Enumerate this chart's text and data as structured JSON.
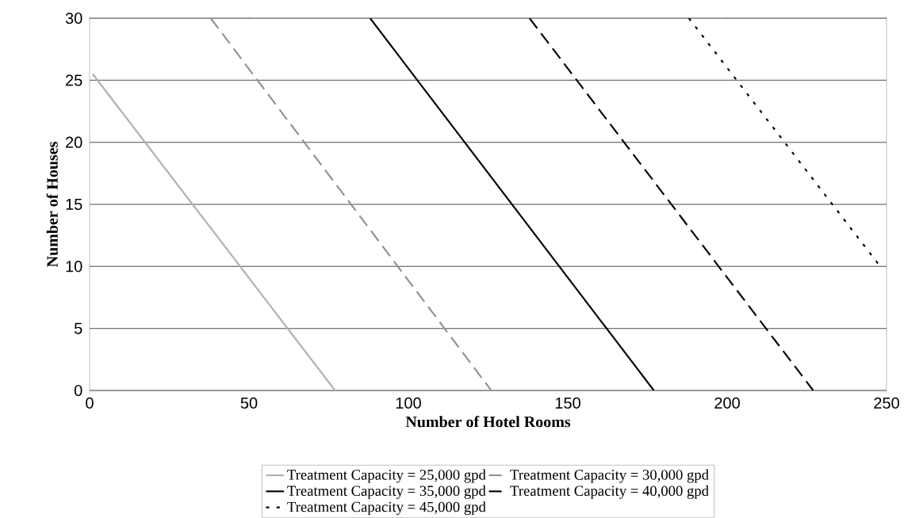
{
  "chart_data": {
    "type": "line",
    "xlabel": "Number of Hotel Rooms",
    "ylabel": "Number of Houses",
    "xlim": [
      0,
      250
    ],
    "xticks": [
      0,
      50,
      100,
      150,
      200,
      250
    ],
    "ylim": [
      0,
      30
    ],
    "yticks": [
      0,
      5,
      10,
      15,
      20,
      25,
      30
    ],
    "grid": "y",
    "legend": "bottom",
    "series": [
      {
        "name": "Treatment Capacity = 25,000 gpd",
        "color": "#b0b0b0",
        "line_style": "solid",
        "x": [
          1,
          77
        ],
        "values": [
          25.5,
          0
        ]
      },
      {
        "name": "Treatment Capacity = 30,000 gpd",
        "color": "#909090",
        "line_style": "dashed",
        "x": [
          38,
          126
        ],
        "values": [
          30,
          0
        ]
      },
      {
        "name": "Treatment Capacity = 35,000 gpd",
        "color": "#000000",
        "line_style": "solid",
        "x": [
          88,
          177
        ],
        "values": [
          30,
          0
        ]
      },
      {
        "name": "Treatment Capacity = 40,000 gpd",
        "color": "#000000",
        "line_style": "dashed",
        "x": [
          138,
          227
        ],
        "values": [
          30,
          0
        ]
      },
      {
        "name": "Treatment Capacity = 45,000 gpd",
        "color": "#000000",
        "line_style": "dotted",
        "x": [
          188,
          248
        ],
        "values": [
          30,
          10
        ]
      }
    ]
  }
}
